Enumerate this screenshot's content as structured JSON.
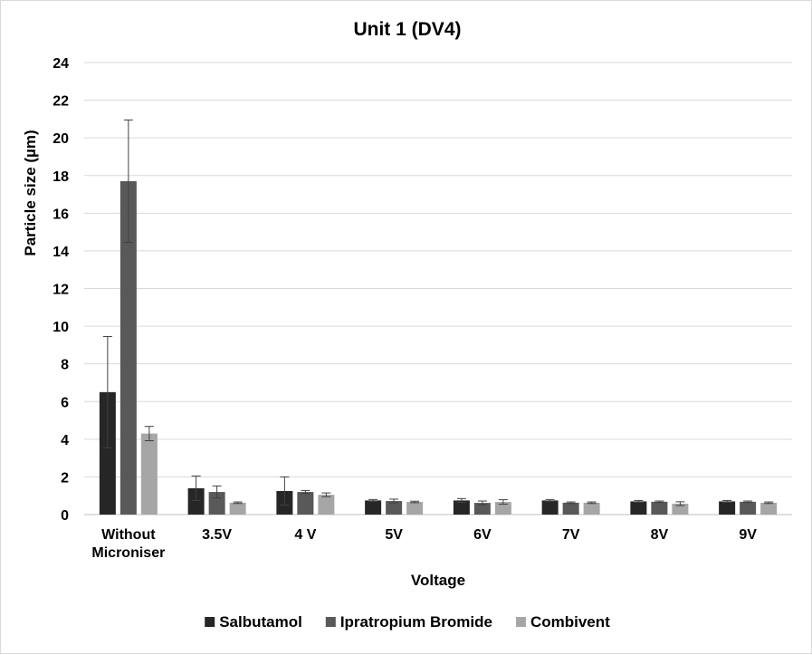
{
  "chart_data": {
    "type": "bar",
    "title": "Unit 1  (DV4)",
    "xlabel": "Voltage",
    "ylabel": "Particle size (µm)",
    "ylim": [
      0,
      24
    ],
    "ytick_step": 2,
    "grid": true,
    "legend_position": "bottom",
    "categories": [
      [
        "Without",
        "Microniser"
      ],
      [
        "3.5V"
      ],
      [
        "4 V"
      ],
      [
        "5V"
      ],
      [
        "6V"
      ],
      [
        "7V"
      ],
      [
        "8V"
      ],
      [
        "9V"
      ]
    ],
    "series": [
      {
        "name": "Salbutamol",
        "color": "#262626",
        "values": [
          6.5,
          1.4,
          1.25,
          0.75,
          0.75,
          0.75,
          0.7,
          0.7
        ],
        "errors": [
          2.95,
          0.65,
          0.75,
          0.05,
          0.1,
          0.05,
          0.05,
          0.05
        ]
      },
      {
        "name": "Ipratropium Bromide",
        "color": "#595959",
        "values": [
          17.7,
          1.2,
          1.2,
          0.72,
          0.62,
          0.63,
          0.68,
          0.68
        ],
        "errors": [
          3.25,
          0.32,
          0.08,
          0.1,
          0.1,
          0.04,
          0.04,
          0.04
        ]
      },
      {
        "name": "Combivent",
        "color": "#a6a6a6",
        "values": [
          4.3,
          0.63,
          1.05,
          0.67,
          0.67,
          0.63,
          0.58,
          0.63
        ],
        "errors": [
          0.38,
          0.04,
          0.1,
          0.04,
          0.12,
          0.04,
          0.1,
          0.04
        ]
      }
    ]
  }
}
